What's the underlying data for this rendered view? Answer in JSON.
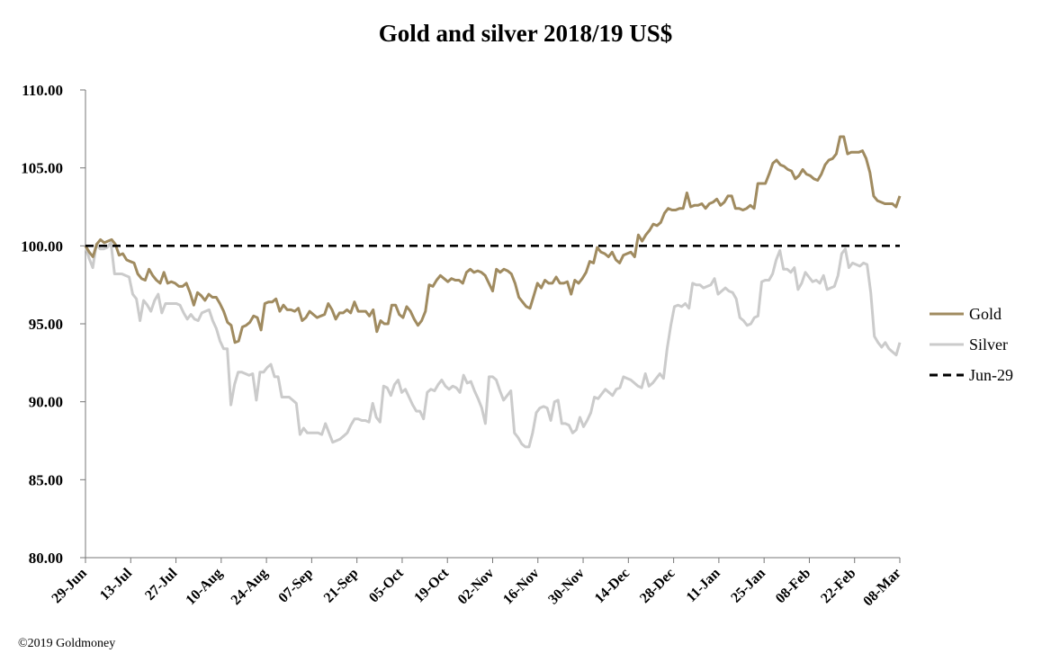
{
  "chart_data": {
    "type": "line",
    "title": "Gold and silver 2018/19  US$",
    "ylim": [
      80,
      110
    ],
    "yticks": [
      "110.00",
      "105.00",
      "100.00",
      "95.00",
      "90.00",
      "85.00",
      "80.00"
    ],
    "x_labels": [
      "29-Jun",
      "13-Jul",
      "27-Jul",
      "10-Aug",
      "24-Aug",
      "07-Sep",
      "21-Sep",
      "05-Oct",
      "19-Oct",
      "02-Nov",
      "16-Nov",
      "30-Nov",
      "14-Dec",
      "28-Dec",
      "11-Jan",
      "25-Jan",
      "08-Feb",
      "22-Feb",
      "08-Mar"
    ],
    "grid": false,
    "legend_position": "right",
    "series": [
      {
        "name": "Gold",
        "color": "#a08b60",
        "style": "solid",
        "values": [
          100.0,
          99.6,
          99.3,
          100.1,
          100.4,
          100.2,
          100.3,
          100.4,
          100.1,
          99.4,
          99.5,
          99.1,
          99.0,
          98.9,
          98.2,
          97.9,
          97.8,
          98.5,
          98.1,
          97.8,
          97.6,
          98.3,
          97.6,
          97.7,
          97.6,
          97.4,
          97.4,
          97.6,
          97.0,
          96.2,
          97.0,
          96.8,
          96.5,
          96.9,
          96.7,
          96.7,
          96.3,
          95.8,
          95.1,
          94.9,
          93.8,
          93.9,
          94.8,
          94.9,
          95.1,
          95.5,
          95.4,
          94.6,
          96.3,
          96.4,
          96.4,
          96.6,
          95.8,
          96.2,
          95.9,
          95.9,
          95.8,
          96.0,
          95.2,
          95.4,
          95.8,
          95.6,
          95.4,
          95.5,
          95.6,
          96.3,
          95.9,
          95.3,
          95.7,
          95.7,
          95.9,
          95.7,
          96.4,
          95.8,
          95.8,
          95.8,
          95.5,
          95.9,
          94.5,
          95.2,
          95.0,
          95.0,
          96.2,
          96.2,
          95.6,
          95.4,
          96.1,
          95.8,
          95.3,
          94.9,
          95.2,
          95.8,
          97.5,
          97.4,
          97.8,
          98.1,
          97.9,
          97.7,
          97.9,
          97.8,
          97.8,
          97.6,
          98.3,
          98.5,
          98.3,
          98.4,
          98.3,
          98.1,
          97.6,
          97.1,
          98.5,
          98.3,
          98.5,
          98.4,
          98.2,
          97.6,
          96.7,
          96.4,
          96.1,
          96.0,
          96.8,
          97.6,
          97.3,
          97.8,
          97.6,
          97.6,
          98.0,
          97.6,
          97.6,
          97.7,
          96.9,
          97.8,
          97.6,
          97.9,
          98.3,
          99.0,
          98.9,
          99.9,
          99.6,
          99.5,
          99.3,
          99.6,
          99.1,
          98.9,
          99.4,
          99.5,
          99.6,
          99.3,
          100.7,
          100.3,
          100.7,
          101.0,
          101.4,
          101.3,
          101.5,
          102.1,
          102.4,
          102.3,
          102.3,
          102.4,
          102.4,
          103.4,
          102.5,
          102.6,
          102.6,
          102.7,
          102.4,
          102.7,
          102.8,
          103.0,
          102.6,
          102.8,
          103.2,
          103.2,
          102.4,
          102.4,
          102.3,
          102.4,
          102.6,
          102.4,
          104.0,
          104.0,
          104.0,
          104.6,
          105.3,
          105.5,
          105.2,
          105.1,
          104.9,
          104.8,
          104.3,
          104.5,
          104.9,
          104.6,
          104.5,
          104.3,
          104.2,
          104.6,
          105.2,
          105.5,
          105.6,
          105.9,
          107.0,
          107.0,
          105.9,
          106.0,
          106.0,
          106.0,
          106.1,
          105.6,
          104.7,
          103.2,
          102.9,
          102.8,
          102.7,
          102.7,
          102.7,
          102.5,
          103.2
        ]
      },
      {
        "name": "Silver",
        "color": "#cbcbcb",
        "style": "solid",
        "values": [
          100.0,
          99.2,
          98.6,
          100.1,
          99.8,
          99.8,
          99.9,
          100.2,
          98.2,
          98.2,
          98.2,
          98.1,
          98.0,
          96.9,
          96.6,
          95.2,
          96.5,
          96.2,
          95.8,
          96.5,
          96.9,
          95.7,
          96.3,
          96.3,
          96.3,
          96.3,
          96.2,
          95.7,
          95.3,
          95.6,
          95.3,
          95.2,
          95.7,
          95.8,
          95.9,
          95.2,
          94.7,
          93.9,
          93.4,
          93.4,
          89.8,
          91.1,
          91.9,
          91.9,
          91.8,
          91.7,
          91.8,
          90.1,
          91.9,
          91.9,
          92.2,
          92.4,
          91.6,
          91.6,
          90.3,
          90.3,
          90.3,
          90.1,
          89.9,
          87.9,
          88.3,
          88.0,
          88.0,
          88.0,
          88.0,
          87.9,
          88.6,
          88.0,
          87.4,
          87.5,
          87.6,
          87.8,
          88.0,
          88.5,
          88.9,
          88.9,
          88.8,
          88.8,
          88.7,
          89.9,
          89.0,
          88.7,
          91.0,
          90.9,
          90.4,
          91.1,
          91.4,
          90.6,
          90.8,
          90.3,
          89.8,
          89.4,
          89.4,
          88.9,
          90.6,
          90.8,
          90.7,
          91.1,
          91.4,
          91.0,
          90.8,
          91.0,
          90.9,
          90.6,
          91.7,
          91.2,
          91.3,
          90.7,
          90.2,
          89.6,
          88.6,
          91.6,
          91.6,
          91.4,
          90.7,
          90.1,
          90.4,
          90.7,
          88.0,
          87.7,
          87.3,
          87.1,
          87.1,
          88.0,
          89.3,
          89.6,
          89.7,
          89.6,
          88.8,
          90.0,
          90.1,
          88.6,
          88.6,
          88.5,
          88.0,
          88.2,
          89.0,
          88.4,
          88.8,
          89.3,
          90.3,
          90.2,
          90.5,
          90.8,
          90.6,
          90.4,
          90.8,
          90.9,
          91.6,
          91.5,
          91.4,
          91.2,
          91.0,
          90.9,
          91.8,
          91.0,
          91.2,
          91.5,
          91.8,
          91.5,
          93.4,
          94.9,
          96.1,
          96.2,
          96.1,
          96.3,
          96.0,
          97.6,
          97.5,
          97.5,
          97.3,
          97.4,
          97.5,
          97.9,
          96.9,
          97.1,
          97.3,
          97.1,
          97.0,
          96.6,
          95.4,
          95.2,
          94.9,
          95.0,
          95.4,
          95.5,
          97.7,
          97.8,
          97.8,
          98.2,
          99.1,
          99.7,
          98.5,
          98.5,
          98.3,
          98.6,
          97.2,
          97.6,
          98.3,
          98.0,
          97.7,
          97.8,
          97.6,
          98.1,
          97.2,
          97.3,
          97.4,
          98.1,
          99.5,
          99.8,
          98.6,
          98.9,
          98.8,
          98.7,
          98.9,
          98.8,
          97.0,
          94.2,
          93.8,
          93.5,
          93.8,
          93.4,
          93.2,
          93.0,
          93.8
        ]
      },
      {
        "name": "Jun-29",
        "color": "#000000",
        "style": "dashed",
        "values": [
          100,
          100
        ]
      }
    ]
  },
  "footer": {
    "copyright": "©2019 Goldmoney"
  }
}
